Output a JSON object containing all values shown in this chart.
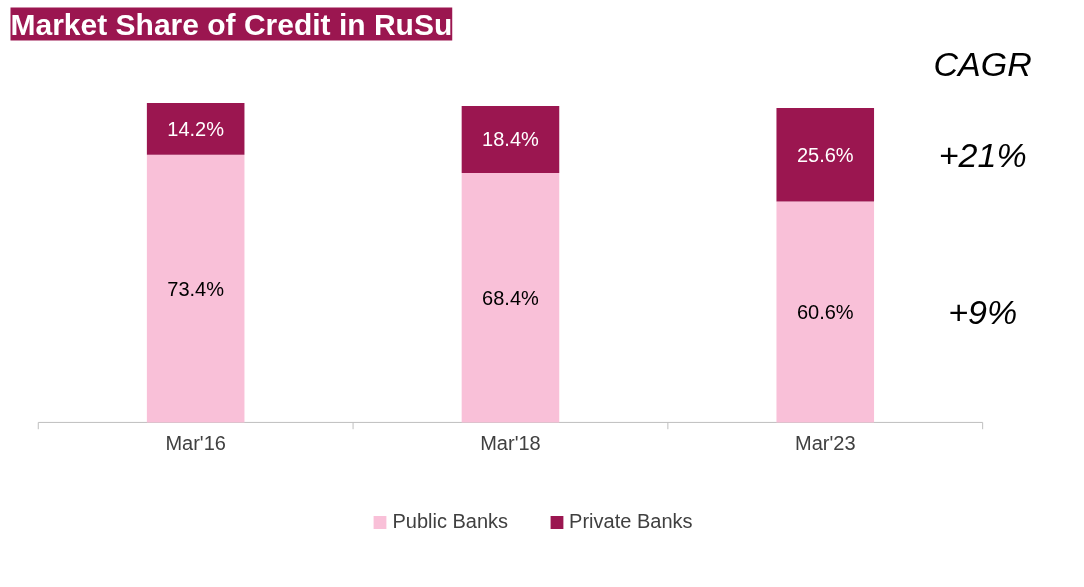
{
  "chart_data": {
    "type": "bar",
    "title": "Market Share of Credit in RuSu",
    "categories": [
      "Mar'16",
      "Mar'18",
      "Mar'23"
    ],
    "stacked": true,
    "grid": false,
    "legend": "bottom",
    "series": [
      {
        "name": "Public Banks",
        "color": "#f9c0d8",
        "values": [
          73.4,
          68.4,
          60.6
        ],
        "value_labels": [
          "73.4%",
          "68.4%",
          "60.6%"
        ]
      },
      {
        "name": "Private Banks",
        "color": "#9b1650",
        "values": [
          14.2,
          18.4,
          25.6
        ],
        "value_labels": [
          "14.2%",
          "18.4%",
          "25.6%"
        ]
      }
    ],
    "annotations": [
      "CAGR",
      "+21%",
      "+9%"
    ]
  }
}
